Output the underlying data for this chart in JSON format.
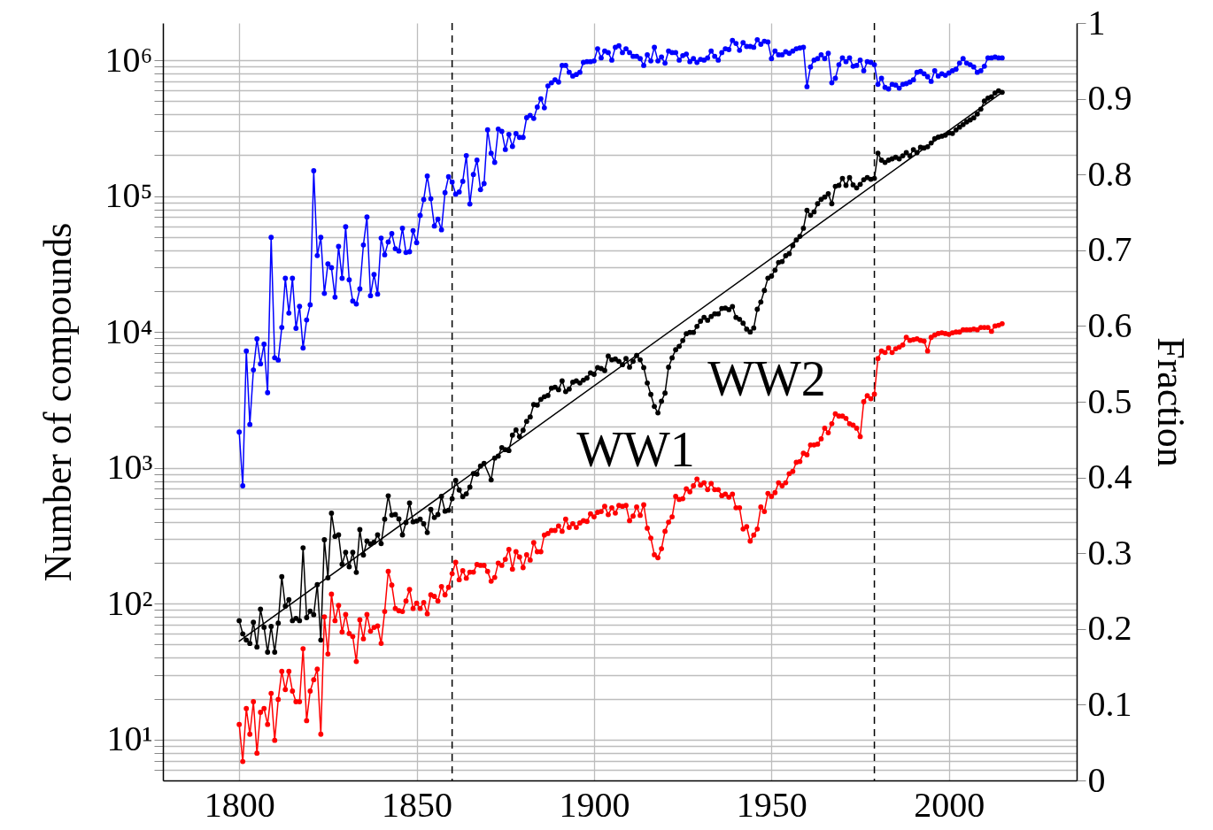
{
  "chart_data": {
    "type": "line",
    "ylabel": "Number of compounds",
    "y2label": "Fraction",
    "log": "y",
    "grid": true,
    "marker": "circle",
    "line_style": "solid",
    "xlim": [
      1778.5,
      2036
    ],
    "xticks": [
      1800,
      1850,
      1900,
      1950,
      2000
    ],
    "ylim": [
      5,
      1880000
    ],
    "yticks": [
      {
        "value": 6,
        "label": null
      },
      {
        "value": 7,
        "label": null
      },
      {
        "value": 8,
        "label": null
      },
      {
        "value": 9,
        "label": null
      },
      {
        "value": 10,
        "label": "10¹"
      },
      {
        "value": 20,
        "label": null
      },
      {
        "value": 30,
        "label": null
      },
      {
        "value": 40,
        "label": null
      },
      {
        "value": 50,
        "label": null
      },
      {
        "value": 60,
        "label": null
      },
      {
        "value": 70,
        "label": null
      },
      {
        "value": 80,
        "label": null
      },
      {
        "value": 90,
        "label": null
      },
      {
        "value": 100,
        "label": "10²"
      },
      {
        "value": 200,
        "label": null
      },
      {
        "value": 300,
        "label": null
      },
      {
        "value": 400,
        "label": null
      },
      {
        "value": 500,
        "label": null
      },
      {
        "value": 600,
        "label": null
      },
      {
        "value": 700,
        "label": null
      },
      {
        "value": 800,
        "label": null
      },
      {
        "value": 900,
        "label": null
      },
      {
        "value": 1000,
        "label": "10³"
      },
      {
        "value": 2000,
        "label": null
      },
      {
        "value": 3000,
        "label": null
      },
      {
        "value": 4000,
        "label": null
      },
      {
        "value": 5000,
        "label": null
      },
      {
        "value": 6000,
        "label": null
      },
      {
        "value": 7000,
        "label": null
      },
      {
        "value": 8000,
        "label": null
      },
      {
        "value": 9000,
        "label": null
      },
      {
        "value": 10000,
        "label": "10⁴"
      },
      {
        "value": 20000,
        "label": null
      },
      {
        "value": 30000,
        "label": null
      },
      {
        "value": 40000,
        "label": null
      },
      {
        "value": 50000,
        "label": null
      },
      {
        "value": 60000,
        "label": null
      },
      {
        "value": 70000,
        "label": null
      },
      {
        "value": 80000,
        "label": null
      },
      {
        "value": 90000,
        "label": null
      },
      {
        "value": 100000,
        "label": "10⁵"
      },
      {
        "value": 200000,
        "label": null
      },
      {
        "value": 300000,
        "label": null
      },
      {
        "value": 400000,
        "label": null
      },
      {
        "value": 500000,
        "label": null
      },
      {
        "value": 600000,
        "label": null
      },
      {
        "value": 700000,
        "label": null
      },
      {
        "value": 800000,
        "label": null
      },
      {
        "value": 900000,
        "label": null
      },
      {
        "value": 1000000,
        "label": "10⁶"
      }
    ],
    "y2lim": [
      0,
      1
    ],
    "y2ticks": [
      0,
      0.1,
      0.2,
      0.3,
      0.4,
      0.5,
      0.6,
      0.7,
      0.8,
      0.9,
      1
    ],
    "x": [
      1800,
      1801,
      1802,
      1803,
      1804,
      1805,
      1806,
      1807,
      1808,
      1809,
      1810,
      1811,
      1812,
      1813,
      1814,
      1815,
      1816,
      1817,
      1818,
      1819,
      1820,
      1821,
      1822,
      1823,
      1824,
      1825,
      1826,
      1827,
      1828,
      1829,
      1830,
      1831,
      1832,
      1833,
      1834,
      1835,
      1836,
      1837,
      1838,
      1839,
      1840,
      1841,
      1842,
      1843,
      1844,
      1845,
      1846,
      1847,
      1848,
      1849,
      1850,
      1851,
      1852,
      1853,
      1854,
      1855,
      1856,
      1857,
      1858,
      1859,
      1860,
      1861,
      1862,
      1863,
      1864,
      1865,
      1866,
      1867,
      1868,
      1869,
      1870,
      1871,
      1872,
      1873,
      1874,
      1875,
      1876,
      1877,
      1878,
      1879,
      1880,
      1881,
      1882,
      1883,
      1884,
      1885,
      1886,
      1887,
      1888,
      1889,
      1890,
      1891,
      1892,
      1893,
      1894,
      1895,
      1896,
      1897,
      1898,
      1899,
      1900,
      1901,
      1902,
      1903,
      1904,
      1905,
      1906,
      1907,
      1908,
      1909,
      1910,
      1911,
      1912,
      1913,
      1914,
      1915,
      1916,
      1917,
      1918,
      1919,
      1920,
      1921,
      1922,
      1923,
      1924,
      1925,
      1926,
      1927,
      1928,
      1929,
      1930,
      1931,
      1932,
      1933,
      1934,
      1935,
      1936,
      1937,
      1938,
      1939,
      1940,
      1941,
      1942,
      1943,
      1944,
      1945,
      1946,
      1947,
      1948,
      1949,
      1950,
      1951,
      1952,
      1953,
      1954,
      1955,
      1956,
      1957,
      1958,
      1959,
      1960,
      1961,
      1962,
      1963,
      1964,
      1965,
      1966,
      1967,
      1968,
      1969,
      1970,
      1971,
      1972,
      1973,
      1974,
      1975,
      1976,
      1977,
      1978,
      1979,
      1980,
      1981,
      1982,
      1983,
      1984,
      1985,
      1986,
      1987,
      1988,
      1989,
      1990,
      1991,
      1992,
      1993,
      1994,
      1995,
      1996,
      1997,
      1998,
      1999,
      2000,
      2001,
      2002,
      2003,
      2004,
      2005,
      2006,
      2007,
      2008,
      2009,
      2010,
      2011,
      2012,
      2013,
      2014,
      2015
    ],
    "series": [
      {
        "color": "#000000",
        "x": [
          1800,
          1801,
          1802,
          1803,
          1804,
          1805,
          1806,
          1807,
          1808,
          1809,
          1810,
          1811,
          1812,
          1813,
          1814,
          1815,
          1816,
          1817,
          1818,
          1819,
          1820,
          1821,
          1822,
          1823,
          1824,
          1825,
          1826,
          1827,
          1828,
          1829,
          1830,
          1831,
          1832,
          1833,
          1834,
          1835,
          1836,
          1837,
          1838,
          1839,
          1840,
          1841,
          1842,
          1843,
          1844,
          1845,
          1846,
          1847,
          1848,
          1849,
          1850,
          1851,
          1852,
          1853,
          1854,
          1855,
          1856,
          1857,
          1858,
          1859,
          1860,
          1861,
          1862,
          1863,
          1864,
          1865,
          1866,
          1867,
          1868,
          1869,
          1871,
          1872,
          1873,
          1874,
          1875,
          1876,
          1877,
          1878,
          1879,
          1880,
          1881,
          1882,
          1883,
          1884,
          1885,
          1886,
          1887,
          1888,
          1889,
          1890,
          1891,
          1892,
          1893,
          1894,
          1895,
          1896,
          1897,
          1898,
          1899,
          1900,
          1901,
          1902,
          1903,
          1904,
          1905,
          1906,
          1907,
          1908,
          1909,
          1910,
          1911,
          1912,
          1913,
          1914,
          1915,
          1916,
          1917,
          1918,
          1919,
          1920,
          1921,
          1922,
          1923,
          1924,
          1925,
          1926,
          1927,
          1928,
          1929,
          1930,
          1931,
          1932,
          1933,
          1934,
          1935,
          1936,
          1937,
          1938,
          1939,
          1940,
          1941,
          1942,
          1943,
          1944,
          1945,
          1946,
          1947,
          1948,
          1949,
          1950,
          1951,
          1952,
          1953,
          1954,
          1955,
          1956,
          1957,
          1958,
          1959,
          1960,
          1961,
          1962,
          1963,
          1964,
          1965,
          1966,
          1967,
          1968,
          1969,
          1970,
          1971,
          1972,
          1973,
          1974,
          1975,
          1976,
          1977,
          1978,
          1979,
          1980,
          1981,
          1982,
          1983,
          1984,
          1985,
          1986,
          1987,
          1988,
          1989,
          1990,
          1991,
          1992,
          1993,
          1994,
          1995,
          1996,
          1997,
          1998,
          1999,
          2000,
          2001,
          2002,
          2003,
          2004,
          2005,
          2006,
          2007,
          2008,
          2009,
          2010,
          2011,
          2012,
          2013,
          2014,
          2015
        ],
        "values": [
          75,
          60,
          54,
          51,
          73,
          48,
          91,
          67,
          44,
          68,
          44,
          72,
          158,
          96,
          107,
          75,
          78,
          75,
          258,
          79,
          88,
          83,
          138,
          54,
          296,
          155,
          464,
          313,
          321,
          195,
          239,
          187,
          239,
          170,
          351,
          228,
          289,
          275,
          284,
          321,
          277,
          419,
          622,
          449,
          453,
          421,
          321,
          396,
          551,
          401,
          406,
          419,
          387,
          334,
          494,
          431,
          453,
          617,
          480,
          487,
          593,
          808,
          687,
          614,
          644,
          721,
          908,
          899,
          1030,
          1080,
          815,
          1180,
          1220,
          1410,
          1360,
          1340,
          1740,
          1900,
          1700,
          1890,
          2200,
          2370,
          2920,
          2900,
          3190,
          3340,
          3410,
          3860,
          3920,
          3760,
          4360,
          3640,
          3800,
          4270,
          4360,
          4210,
          4420,
          4580,
          5000,
          4880,
          5470,
          5380,
          5200,
          6640,
          6240,
          6320,
          6080,
          5740,
          6380,
          5510,
          6080,
          6710,
          6240,
          5470,
          4210,
          3470,
          2830,
          2540,
          3090,
          3550,
          5510,
          6450,
          7400,
          7850,
          8650,
          9700,
          9930,
          9930,
          11000,
          12000,
          12800,
          12200,
          13000,
          13600,
          13600,
          14900,
          15000,
          14600,
          15400,
          12800,
          12400,
          11600,
          10500,
          10000,
          10700,
          14700,
          16600,
          20200,
          24900,
          25800,
          28500,
          32500,
          33000,
          36400,
          37700,
          43200,
          47600,
          50600,
          58000,
          78500,
          72200,
          76600,
          87900,
          94600,
          98400,
          104000,
          87900,
          118000,
          120000,
          135000,
          120000,
          137000,
          121000,
          115000,
          122000,
          132000,
          137000,
          133000,
          135000,
          207000,
          184000,
          177000,
          184000,
          188000,
          193000,
          188000,
          198000,
          209000,
          198000,
          220000,
          209000,
          229000,
          226000,
          231000,
          246000,
          265000,
          272000,
          276000,
          281000,
          292000,
          289000,
          307000,
          322000,
          336000,
          352000,
          364000,
          377000,
          402000,
          437000,
          501000,
          526000,
          539000,
          574000,
          596000,
          581000
        ]
      },
      {
        "color": "#000000",
        "marker": "none",
        "x": [
          1800,
          2015
        ],
        "values": [
          53,
          580000
        ]
      },
      {
        "color": "#0000ff",
        "axis": "y2",
        "values": [
          0.46,
          0.389,
          0.567,
          0.47,
          0.542,
          0.583,
          0.55,
          0.576,
          0.512,
          0.717,
          0.558,
          0.555,
          0.598,
          0.663,
          0.617,
          0.663,
          0.597,
          0.626,
          0.571,
          0.608,
          0.628,
          0.805,
          0.693,
          0.717,
          0.643,
          0.682,
          0.677,
          0.638,
          0.705,
          0.663,
          0.731,
          0.661,
          0.633,
          0.629,
          0.649,
          0.707,
          0.744,
          0.64,
          0.668,
          0.642,
          0.716,
          0.694,
          0.711,
          0.722,
          0.702,
          0.699,
          0.729,
          0.697,
          0.698,
          0.726,
          0.71,
          0.746,
          0.767,
          0.798,
          0.768,
          0.732,
          0.741,
          0.727,
          0.776,
          0.797,
          0.79,
          0.774,
          0.777,
          0.791,
          0.825,
          0.761,
          0.8,
          0.819,
          0.78,
          0.788,
          0.859,
          0.828,
          0.816,
          0.86,
          0.857,
          0.833,
          0.853,
          0.837,
          0.854,
          0.849,
          0.849,
          0.875,
          0.878,
          0.874,
          0.889,
          0.9,
          0.888,
          0.917,
          0.921,
          0.925,
          0.922,
          0.944,
          0.944,
          0.935,
          0.93,
          0.932,
          0.935,
          0.948,
          0.949,
          0.949,
          0.95,
          0.966,
          0.954,
          0.963,
          0.961,
          0.951,
          0.968,
          0.97,
          0.961,
          0.966,
          0.961,
          0.956,
          0.956,
          0.953,
          0.944,
          0.958,
          0.95,
          0.968,
          0.95,
          0.955,
          0.947,
          0.963,
          0.961,
          0.961,
          0.951,
          0.957,
          0.959,
          0.949,
          0.953,
          0.948,
          0.952,
          0.951,
          0.954,
          0.963,
          0.956,
          0.951,
          0.961,
          0.966,
          0.965,
          0.977,
          0.973,
          0.964,
          0.974,
          0.969,
          0.969,
          0.968,
          0.978,
          0.972,
          0.976,
          0.975,
          0.953,
          0.963,
          0.958,
          0.958,
          0.962,
          0.96,
          0.963,
          0.966,
          0.967,
          0.968,
          0.916,
          0.942,
          0.951,
          0.953,
          0.958,
          0.953,
          0.96,
          0.921,
          0.927,
          0.945,
          0.954,
          0.949,
          0.954,
          0.943,
          0.944,
          0.951,
          0.937,
          0.949,
          0.948,
          0.945,
          0.919,
          0.927,
          0.915,
          0.913,
          0.919,
          0.918,
          0.914,
          0.919,
          0.92,
          0.922,
          0.925,
          0.935,
          0.936,
          0.933,
          0.929,
          0.923,
          0.937,
          0.93,
          0.933,
          0.931,
          0.934,
          0.937,
          0.939,
          0.947,
          0.953,
          0.947,
          0.945,
          0.942,
          0.935,
          0.937,
          0.943,
          0.954,
          0.954,
          0.955,
          0.954,
          0.954
        ]
      },
      {
        "color": "#ff0000",
        "axis": "y2",
        "values": [
          0.074,
          0.025,
          0.095,
          0.061,
          0.104,
          0.036,
          0.09,
          0.095,
          0.074,
          0.115,
          0.053,
          0.107,
          0.144,
          0.12,
          0.144,
          0.118,
          0.104,
          0.104,
          0.174,
          0.079,
          0.118,
          0.133,
          0.147,
          0.061,
          0.216,
          0.167,
          0.246,
          0.211,
          0.231,
          0.196,
          0.219,
          0.194,
          0.19,
          0.157,
          0.212,
          0.187,
          0.219,
          0.197,
          0.202,
          0.204,
          0.181,
          0.223,
          0.276,
          0.258,
          0.227,
          0.224,
          0.223,
          0.237,
          0.252,
          0.227,
          0.234,
          0.227,
          0.235,
          0.22,
          0.245,
          0.243,
          0.237,
          0.256,
          0.245,
          0.255,
          0.273,
          0.288,
          0.265,
          0.277,
          0.267,
          0.275,
          0.275,
          0.285,
          0.284,
          0.284,
          0.276,
          0.263,
          0.268,
          0.287,
          0.284,
          0.292,
          0.305,
          0.279,
          0.302,
          0.295,
          0.281,
          0.298,
          0.291,
          0.314,
          0.302,
          0.302,
          0.324,
          0.326,
          0.33,
          0.33,
          0.336,
          0.329,
          0.345,
          0.334,
          0.339,
          0.334,
          0.34,
          0.343,
          0.342,
          0.352,
          0.348,
          0.354,
          0.355,
          0.362,
          0.351,
          0.36,
          0.353,
          0.363,
          0.362,
          0.363,
          0.343,
          0.349,
          0.361,
          0.35,
          0.364,
          0.333,
          0.32,
          0.298,
          0.294,
          0.306,
          0.329,
          0.341,
          0.348,
          0.375,
          0.371,
          0.372,
          0.385,
          0.381,
          0.389,
          0.398,
          0.39,
          0.393,
          0.384,
          0.392,
          0.384,
          0.384,
          0.376,
          0.378,
          0.374,
          0.378,
          0.36,
          0.36,
          0.332,
          0.335,
          0.316,
          0.324,
          0.332,
          0.361,
          0.355,
          0.379,
          0.375,
          0.38,
          0.393,
          0.389,
          0.393,
          0.405,
          0.408,
          0.42,
          0.421,
          0.432,
          0.43,
          0.443,
          0.443,
          0.444,
          0.451,
          0.465,
          0.459,
          0.471,
          0.484,
          0.481,
          0.481,
          0.478,
          0.471,
          0.469,
          0.465,
          0.454,
          0.5,
          0.508,
          0.504,
          0.51,
          0.557,
          0.567,
          0.565,
          0.571,
          0.565,
          0.57,
          0.572,
          0.575,
          0.585,
          0.581,
          0.582,
          0.583,
          0.581,
          0.58,
          0.567,
          0.585,
          0.588,
          0.59,
          0.591,
          0.59,
          0.589,
          0.591,
          0.592,
          0.592,
          0.595,
          0.595,
          0.595,
          0.596,
          0.595,
          0.598,
          0.598,
          0.598,
          0.593,
          0.6,
          0.601,
          0.603
        ]
      }
    ],
    "ref_lines": [
      {
        "axis": "x",
        "value": 1860,
        "color": "#000000",
        "line_style": "dashed"
      },
      {
        "axis": "x",
        "value": 1979,
        "color": "#000000",
        "line_style": "dashed"
      }
    ],
    "annotations": [
      "WW1",
      "WW2"
    ]
  }
}
